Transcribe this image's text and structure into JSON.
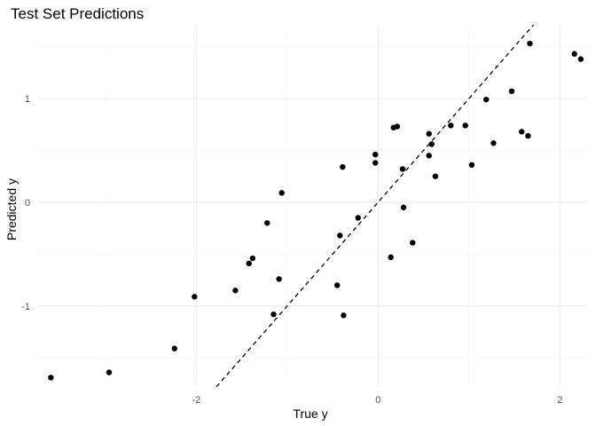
{
  "chart_data": {
    "type": "scatter",
    "title": "Test Set Predictions",
    "xlabel": "True y",
    "ylabel": "Predicted y",
    "xlim": [
      -3.75,
      2.3
    ],
    "ylim": [
      -1.78,
      1.71
    ],
    "x_ticks": [
      -2,
      0,
      2
    ],
    "x_tick_labels": [
      "-2",
      "0",
      "2"
    ],
    "y_ticks": [
      -1,
      0,
      1
    ],
    "y_tick_labels": [
      "-1",
      "0",
      "1"
    ],
    "grid": true,
    "legend": "none",
    "reference_line": {
      "kind": "identity",
      "slope": 1,
      "intercept": 0,
      "style": "dashed"
    },
    "points": [
      {
        "x": -3.6,
        "y": -1.69
      },
      {
        "x": -2.96,
        "y": -1.64
      },
      {
        "x": -2.24,
        "y": -1.41
      },
      {
        "x": -2.02,
        "y": -0.91
      },
      {
        "x": -1.57,
        "y": -0.85
      },
      {
        "x": -1.42,
        "y": -0.59
      },
      {
        "x": -1.38,
        "y": -0.54
      },
      {
        "x": -1.22,
        "y": -0.2
      },
      {
        "x": -1.15,
        "y": -1.08
      },
      {
        "x": -1.09,
        "y": -0.74
      },
      {
        "x": -1.06,
        "y": 0.09
      },
      {
        "x": -0.45,
        "y": -0.8
      },
      {
        "x": -0.42,
        "y": -0.32
      },
      {
        "x": -0.39,
        "y": 0.34
      },
      {
        "x": -0.38,
        "y": -1.09
      },
      {
        "x": -0.22,
        "y": -0.15
      },
      {
        "x": -0.03,
        "y": 0.46
      },
      {
        "x": -0.03,
        "y": 0.38
      },
      {
        "x": 0.14,
        "y": -0.53
      },
      {
        "x": 0.17,
        "y": 0.72
      },
      {
        "x": 0.21,
        "y": 0.73
      },
      {
        "x": 0.27,
        "y": 0.32
      },
      {
        "x": 0.28,
        "y": -0.05
      },
      {
        "x": 0.38,
        "y": -0.39
      },
      {
        "x": 0.56,
        "y": 0.66
      },
      {
        "x": 0.56,
        "y": 0.45
      },
      {
        "x": 0.59,
        "y": 0.56
      },
      {
        "x": 0.63,
        "y": 0.25
      },
      {
        "x": 0.8,
        "y": 0.74
      },
      {
        "x": 0.96,
        "y": 0.74
      },
      {
        "x": 1.03,
        "y": 0.36
      },
      {
        "x": 1.19,
        "y": 0.99
      },
      {
        "x": 1.27,
        "y": 0.57
      },
      {
        "x": 1.47,
        "y": 1.07
      },
      {
        "x": 1.58,
        "y": 0.68
      },
      {
        "x": 1.65,
        "y": 0.64
      },
      {
        "x": 1.67,
        "y": 1.53
      },
      {
        "x": 2.16,
        "y": 1.43
      },
      {
        "x": 2.23,
        "y": 1.38
      }
    ]
  }
}
